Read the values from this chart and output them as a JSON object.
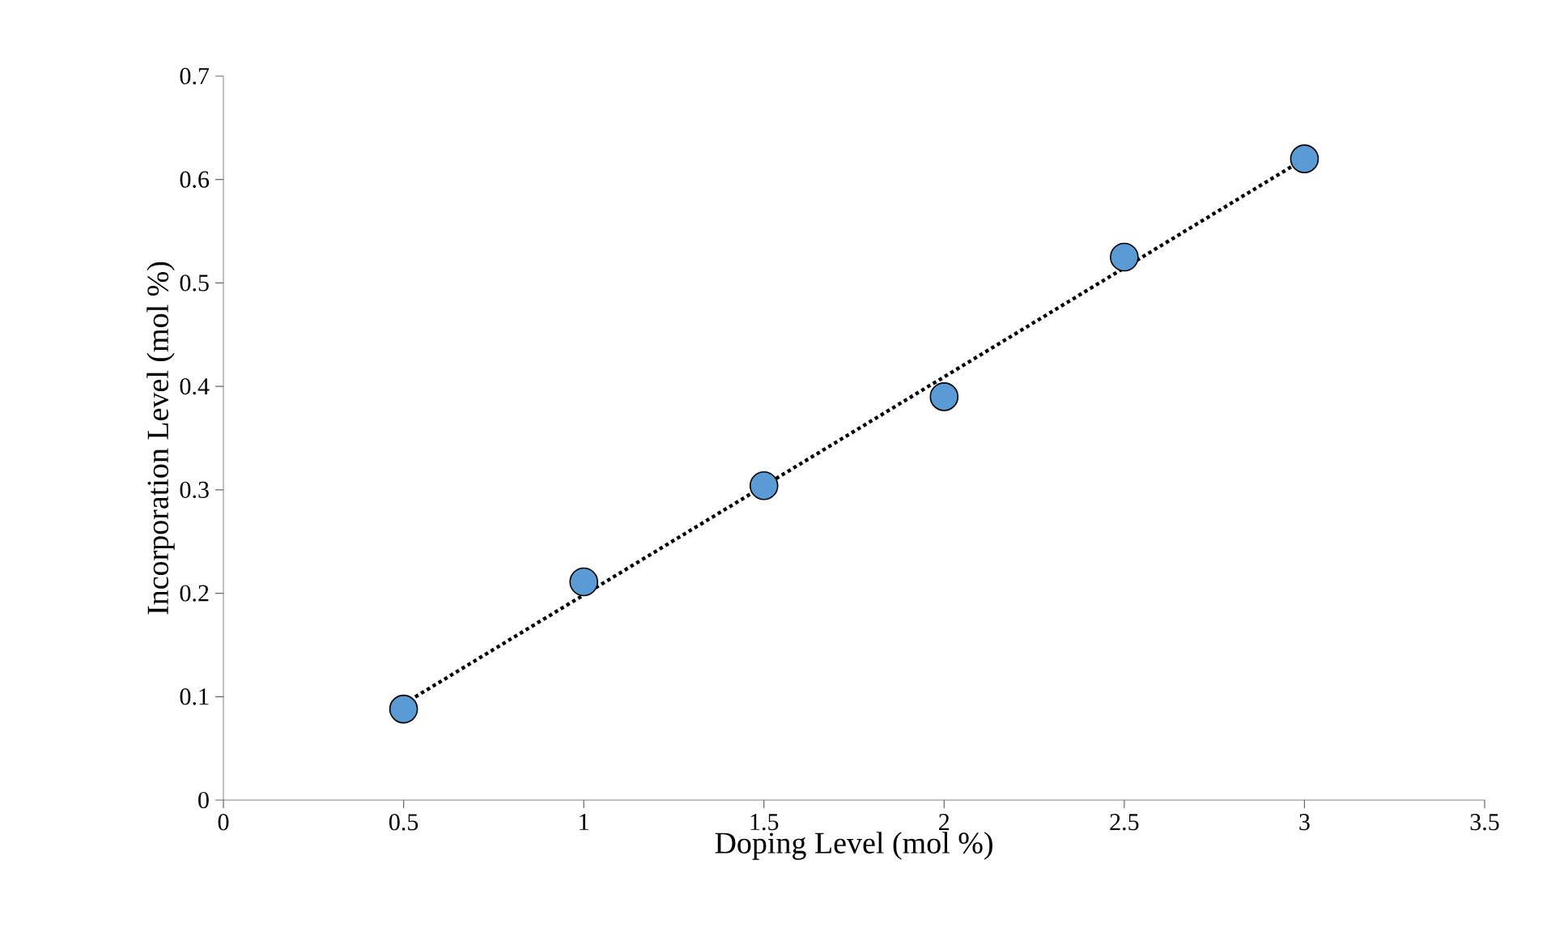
{
  "chart_data": {
    "type": "scatter",
    "xlabel": "Doping Level (mol %)",
    "ylabel": "Incorporation Level (mol %)",
    "xlim": [
      0,
      3.5
    ],
    "ylim": [
      0,
      0.7
    ],
    "xticks": [
      0,
      0.5,
      1,
      1.5,
      2,
      2.5,
      3,
      3.5
    ],
    "yticks": [
      0,
      0.1,
      0.2,
      0.3,
      0.4,
      0.5,
      0.6,
      0.7
    ],
    "series": [
      {
        "color": "#5b9bd5",
        "marker": "circle",
        "x": [
          0.5,
          1,
          1.5,
          2,
          2.5,
          3
        ],
        "values": [
          0.088,
          0.211,
          0.304,
          0.39,
          0.525,
          0.62
        ]
      },
      {
        "type": "line",
        "color": "#000000",
        "line_style": "dotted",
        "x": [
          0.5,
          3
        ],
        "values": [
          0.093,
          0.62
        ]
      }
    ]
  }
}
